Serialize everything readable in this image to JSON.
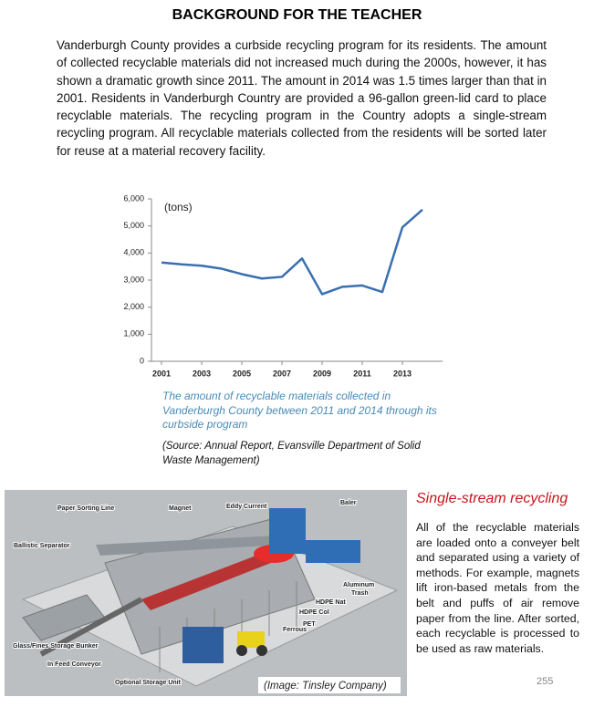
{
  "header": {
    "title": "BACKGROUND FOR THE TEACHER"
  },
  "body": {
    "paragraph": "Vanderburgh County provides a curbside recycling program for its residents. The amount of collected recyclable materials did not increased much during the 2000s, however, it has shown a dramatic growth since 2011.  The amount in 2014 was 1.5 times larger than that in 2001.  Residents in Vanderburgh Country are provided a 96-gallon green-lid card to place recyclable materials.  The recycling program in the Country adopts a single-stream recycling program.   All recyclable materials collected from the residents will be sorted later for reuse at a material recovery facility."
  },
  "chart_data": {
    "type": "line",
    "annotation": "(tons)",
    "x": [
      2001,
      2002,
      2003,
      2004,
      2005,
      2006,
      2007,
      2008,
      2009,
      2010,
      2011,
      2012,
      2013,
      2014
    ],
    "values": [
      3650,
      3580,
      3530,
      3420,
      3220,
      3060,
      3120,
      3800,
      2480,
      2750,
      2800,
      2560,
      4950,
      5600
    ],
    "color": "#3a6fb0",
    "xlim": [
      2000.5,
      2015
    ],
    "xticks": [
      2001,
      2003,
      2005,
      2007,
      2009,
      2011,
      2013
    ],
    "ylim": [
      0,
      6000
    ],
    "yticks": [
      0,
      {
        "value": 1000,
        "label": "1,000"
      },
      {
        "value": 2000,
        "label": "2,000"
      },
      {
        "value": 3000,
        "label": "3,000"
      },
      {
        "value": 4000,
        "label": "4,000"
      },
      {
        "value": 5000,
        "label": "5,000"
      },
      {
        "value": 6000,
        "label": "6,000"
      }
    ],
    "grid": false
  },
  "caption": "The amount of recyclable materials collected in Vanderburgh County between 2011 and 2014 through its curbside program",
  "source": "(Source: Annual Report, Evansville Department of Solid Waste Management)",
  "image": {
    "labels": [
      "Paper Sorting Line",
      "Magnet",
      "Eddy Current",
      "Baler",
      "Ballistic Separator",
      "Aluminum",
      "Trash",
      "HDPE Nat",
      "HDPE Col",
      "PET",
      "Ferrous",
      "Glass/Fines Storage Bunker",
      "In Feed Conveyor",
      "Optional Storage Unit"
    ],
    "credit": "(Image: Tinsley Company)"
  },
  "sidebar": {
    "title": "Single-stream recycling",
    "text": "All of the recyclable materials are loaded onto a conveyer belt and separated using a variety of methods. For example, magnets lift iron-based metals from the belt and puffs of air remove paper from the line. After sorted, each recyclable is processed to be used as raw materials."
  },
  "page_number": "255"
}
